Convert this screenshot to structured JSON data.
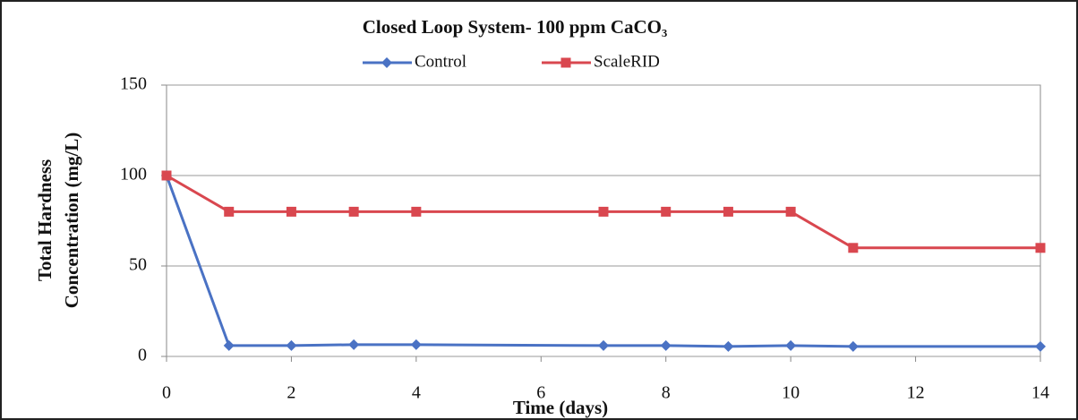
{
  "chart_data": {
    "type": "line",
    "title": "Closed Loop System- 100 ppm CaCO₃",
    "xlabel": "Time (days)",
    "ylabel": [
      "Total Hardness",
      "Concentration (mg/L)"
    ],
    "x": [
      0,
      1,
      2,
      3,
      4,
      7,
      8,
      9,
      10,
      11,
      14
    ],
    "series": [
      {
        "name": "Control",
        "color": "#4a72c4",
        "marker": "diamond",
        "values": [
          100,
          6,
          6,
          6.5,
          6.5,
          6,
          6,
          5.5,
          6,
          5.5,
          5.5
        ]
      },
      {
        "name": "ScaleRID",
        "color": "#d9474f",
        "marker": "square",
        "values": [
          100,
          80,
          80,
          80,
          80,
          80,
          80,
          80,
          80,
          60,
          60
        ]
      }
    ],
    "xlim": [
      0,
      14
    ],
    "xticks": [
      0,
      2,
      4,
      6,
      8,
      10,
      12,
      14
    ],
    "ylim": [
      0,
      150
    ],
    "yticks": [
      0,
      50,
      100,
      150
    ],
    "grid": true,
    "legend": "top"
  }
}
